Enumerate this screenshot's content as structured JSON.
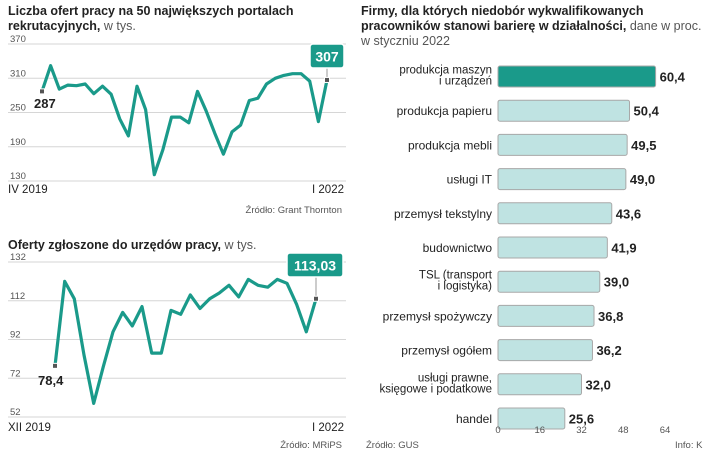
{
  "colors": {
    "accent": "#1a9a8a",
    "bar_light": "#bfe3e2",
    "grid": "#d6d6d6"
  },
  "chart_data": [
    {
      "type": "line",
      "title": "Liczba ofert pracy na 50 największych portalach rekrutacyjnych,",
      "unit": "w tys.",
      "ylim": [
        130,
        370
      ],
      "yticks": [
        370,
        310,
        250,
        190,
        130
      ],
      "x_start_label": "IV 2019",
      "x_end_label": "I 2022",
      "start_label": "287",
      "end_label": "307",
      "values": [
        287,
        332,
        291,
        298,
        297,
        300,
        283,
        296,
        282,
        239,
        209,
        296,
        255,
        141,
        185,
        242,
        242,
        232,
        287,
        253,
        214,
        177,
        216,
        228,
        271,
        275,
        300,
        310,
        315,
        318,
        318,
        305,
        234,
        307
      ],
      "source": "Źródło: Grant Thornton",
      "grid": true
    },
    {
      "type": "line",
      "title": "Oferty zgłoszone do urzędów pracy,",
      "unit": "w tys.",
      "ylim": [
        52,
        132
      ],
      "yticks": [
        132,
        112,
        92,
        72,
        52
      ],
      "x_start_label": "XII 2019",
      "x_end_label": "I 2022",
      "start_label": "78,4",
      "end_label": "113,03",
      "values": [
        78.4,
        122,
        113,
        84,
        59,
        78,
        96,
        106,
        99,
        109,
        85,
        85,
        107,
        105,
        115,
        108,
        113,
        116,
        120,
        114,
        123,
        120,
        119,
        123,
        121,
        110,
        96,
        113.03
      ],
      "source": "Źródło: MRiPS",
      "grid": true
    },
    {
      "type": "bar",
      "orientation": "horizontal",
      "title": "Firmy, dla których niedobór wykwalifikowanych pracowników stanowi barierę w działalności,",
      "unit": "dane w proc. w styczniu 2022",
      "categories": [
        "produkcja maszyn\ni urządzeń",
        "produkcja papieru",
        "produkcja mebli",
        "usługi IT",
        "przemysł tekstylny",
        "budownictwo",
        "TSL (transport\ni logistyka)",
        "przemysł spożywczy",
        "przemysł ogółem",
        "usługi prawne,\nksięgowe i podatkowe",
        "handel"
      ],
      "values": [
        60.4,
        50.4,
        49.5,
        49.0,
        43.6,
        41.9,
        39.0,
        36.8,
        36.2,
        32.0,
        25.6
      ],
      "value_labels": [
        "60,4",
        "50,4",
        "49,5",
        "49,0",
        "43,6",
        "41,9",
        "39,0",
        "36,8",
        "36,2",
        "32,0",
        "25,6"
      ],
      "highlight_index": 0,
      "xlim": [
        0,
        64
      ],
      "xticks": [
        0,
        16,
        32,
        48,
        64
      ],
      "source": "Źródło: GUS",
      "credit": "Info: K"
    }
  ]
}
